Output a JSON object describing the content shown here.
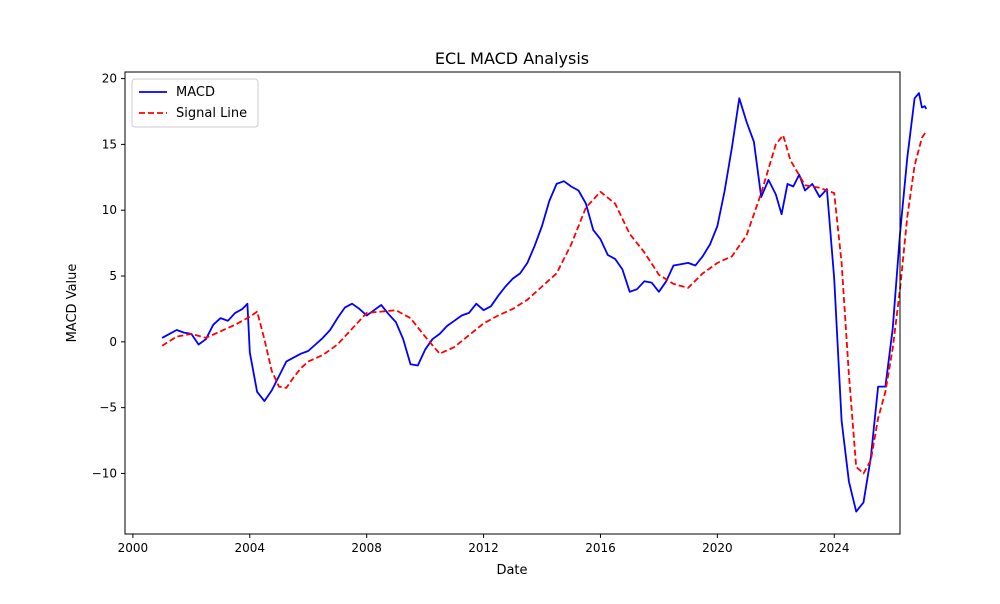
{
  "chart_data": {
    "type": "line",
    "title": "ECL MACD Analysis",
    "xlabel": "Date",
    "ylabel": "MACD Value",
    "xlim": [
      1999.73,
      2026.25
    ],
    "ylim": [
      -14.6,
      20.5
    ],
    "x_ticks": [
      2000,
      2004,
      2008,
      2012,
      2016,
      2020,
      2024
    ],
    "x_tick_labels": [
      "2000",
      "2004",
      "2008",
      "2012",
      "2016",
      "2020",
      "2024"
    ],
    "y_ticks": [
      -10,
      -5,
      0,
      5,
      10,
      15,
      20
    ],
    "y_tick_labels": [
      "−10",
      "−5",
      "0",
      "5",
      "10",
      "15",
      "20"
    ],
    "grid": false,
    "legend_position": "upper-left",
    "series": [
      {
        "name": "MACD",
        "color": "#0000ff",
        "style": "solid",
        "points": [
          [
            2001.0,
            0.3
          ],
          [
            2001.25,
            0.6
          ],
          [
            2001.5,
            0.9
          ],
          [
            2001.75,
            0.7
          ],
          [
            2002.0,
            0.6
          ],
          [
            2002.25,
            -0.2
          ],
          [
            2002.5,
            0.2
          ],
          [
            2002.75,
            1.3
          ],
          [
            2003.0,
            1.8
          ],
          [
            2003.25,
            1.6
          ],
          [
            2003.5,
            2.2
          ],
          [
            2003.75,
            2.5
          ],
          [
            2003.92,
            2.9
          ],
          [
            2004.0,
            -0.8
          ],
          [
            2004.25,
            -3.8
          ],
          [
            2004.5,
            -4.5
          ],
          [
            2004.75,
            -3.7
          ],
          [
            2005.0,
            -2.6
          ],
          [
            2005.25,
            -1.5
          ],
          [
            2005.5,
            -1.2
          ],
          [
            2005.75,
            -0.9
          ],
          [
            2006.0,
            -0.7
          ],
          [
            2006.25,
            -0.2
          ],
          [
            2006.5,
            0.3
          ],
          [
            2006.75,
            0.9
          ],
          [
            2007.0,
            1.8
          ],
          [
            2007.25,
            2.6
          ],
          [
            2007.5,
            2.9
          ],
          [
            2007.75,
            2.5
          ],
          [
            2008.0,
            2.0
          ],
          [
            2008.25,
            2.4
          ],
          [
            2008.5,
            2.8
          ],
          [
            2008.75,
            2.1
          ],
          [
            2009.0,
            1.5
          ],
          [
            2009.25,
            0.2
          ],
          [
            2009.5,
            -1.7
          ],
          [
            2009.75,
            -1.8
          ],
          [
            2010.0,
            -0.6
          ],
          [
            2010.25,
            0.2
          ],
          [
            2010.5,
            0.6
          ],
          [
            2010.75,
            1.2
          ],
          [
            2011.0,
            1.6
          ],
          [
            2011.25,
            2.0
          ],
          [
            2011.5,
            2.2
          ],
          [
            2011.75,
            2.9
          ],
          [
            2012.0,
            2.4
          ],
          [
            2012.25,
            2.7
          ],
          [
            2012.5,
            3.5
          ],
          [
            2012.75,
            4.2
          ],
          [
            2013.0,
            4.8
          ],
          [
            2013.25,
            5.2
          ],
          [
            2013.5,
            6.0
          ],
          [
            2013.75,
            7.3
          ],
          [
            2014.0,
            8.8
          ],
          [
            2014.25,
            10.7
          ],
          [
            2014.5,
            12.0
          ],
          [
            2014.75,
            12.2
          ],
          [
            2015.0,
            11.8
          ],
          [
            2015.25,
            11.5
          ],
          [
            2015.5,
            10.5
          ],
          [
            2015.75,
            8.5
          ],
          [
            2016.0,
            7.8
          ],
          [
            2016.25,
            6.6
          ],
          [
            2016.5,
            6.3
          ],
          [
            2016.75,
            5.5
          ],
          [
            2017.0,
            3.8
          ],
          [
            2017.25,
            4.0
          ],
          [
            2017.5,
            4.6
          ],
          [
            2017.75,
            4.5
          ],
          [
            2018.0,
            3.8
          ],
          [
            2018.25,
            4.6
          ],
          [
            2018.5,
            5.8
          ],
          [
            2018.75,
            5.9
          ],
          [
            2019.0,
            6.0
          ],
          [
            2019.25,
            5.8
          ],
          [
            2019.5,
            6.5
          ],
          [
            2019.75,
            7.4
          ],
          [
            2020.0,
            8.8
          ],
          [
            2020.25,
            11.5
          ],
          [
            2020.5,
            14.8
          ],
          [
            2020.75,
            18.5
          ],
          [
            2021.0,
            16.7
          ],
          [
            2021.25,
            15.2
          ],
          [
            2021.5,
            11.0
          ],
          [
            2021.75,
            12.3
          ],
          [
            2022.0,
            11.2
          ],
          [
            2022.2,
            9.7
          ],
          [
            2022.4,
            12.0
          ],
          [
            2022.6,
            11.8
          ],
          [
            2022.8,
            12.7
          ],
          [
            2023.0,
            11.5
          ],
          [
            2023.25,
            12.0
          ],
          [
            2023.5,
            11.0
          ],
          [
            2023.75,
            11.6
          ],
          [
            2024.0,
            4.8
          ],
          [
            2024.25,
            -6.0
          ],
          [
            2024.5,
            -10.6
          ],
          [
            2024.75,
            -12.9
          ],
          [
            2025.0,
            -12.2
          ],
          [
            2025.25,
            -8.8
          ],
          [
            2025.5,
            -3.4
          ],
          [
            2025.75,
            -3.4
          ],
          [
            2026.0,
            1.0
          ],
          [
            2026.25,
            8.2
          ],
          [
            2026.5,
            14.0
          ],
          [
            2026.75,
            18.5
          ],
          [
            2026.9,
            18.9
          ],
          [
            2027.0,
            17.8
          ],
          [
            2027.1,
            17.9
          ],
          [
            2027.15,
            17.7
          ]
        ]
      },
      {
        "name": "Signal Line",
        "color": "#ff0000",
        "style": "dashed",
        "points": [
          [
            2001.0,
            -0.3
          ],
          [
            2001.5,
            0.4
          ],
          [
            2002.0,
            0.6
          ],
          [
            2002.5,
            0.3
          ],
          [
            2003.0,
            0.8
          ],
          [
            2003.5,
            1.3
          ],
          [
            2004.0,
            1.9
          ],
          [
            2004.25,
            2.3
          ],
          [
            2004.5,
            0.2
          ],
          [
            2004.75,
            -2.2
          ],
          [
            2005.0,
            -3.4
          ],
          [
            2005.25,
            -3.5
          ],
          [
            2005.5,
            -2.7
          ],
          [
            2005.75,
            -2.0
          ],
          [
            2006.0,
            -1.5
          ],
          [
            2006.5,
            -1.0
          ],
          [
            2007.0,
            -0.2
          ],
          [
            2007.5,
            1.0
          ],
          [
            2008.0,
            2.2
          ],
          [
            2008.5,
            2.3
          ],
          [
            2009.0,
            2.4
          ],
          [
            2009.5,
            1.8
          ],
          [
            2010.0,
            0.4
          ],
          [
            2010.5,
            -0.9
          ],
          [
            2011.0,
            -0.4
          ],
          [
            2011.5,
            0.5
          ],
          [
            2012.0,
            1.4
          ],
          [
            2012.5,
            2.0
          ],
          [
            2013.0,
            2.5
          ],
          [
            2013.5,
            3.2
          ],
          [
            2014.0,
            4.2
          ],
          [
            2014.5,
            5.2
          ],
          [
            2015.0,
            7.4
          ],
          [
            2015.5,
            10.2
          ],
          [
            2016.0,
            11.4
          ],
          [
            2016.5,
            10.5
          ],
          [
            2017.0,
            8.2
          ],
          [
            2017.5,
            6.8
          ],
          [
            2018.0,
            5.1
          ],
          [
            2018.5,
            4.4
          ],
          [
            2019.0,
            4.1
          ],
          [
            2019.5,
            5.2
          ],
          [
            2020.0,
            6.0
          ],
          [
            2020.5,
            6.5
          ],
          [
            2021.0,
            8.1
          ],
          [
            2021.5,
            11.3
          ],
          [
            2022.0,
            15.0
          ],
          [
            2022.25,
            15.7
          ],
          [
            2022.5,
            13.8
          ],
          [
            2023.0,
            11.9
          ],
          [
            2023.5,
            11.7
          ],
          [
            2024.0,
            11.3
          ],
          [
            2024.25,
            6.0
          ],
          [
            2024.5,
            -2.5
          ],
          [
            2024.75,
            -9.5
          ],
          [
            2025.0,
            -10.0
          ],
          [
            2025.25,
            -9.0
          ],
          [
            2025.5,
            -5.8
          ],
          [
            2025.75,
            -3.8
          ],
          [
            2026.0,
            -0.5
          ],
          [
            2026.25,
            4.0
          ],
          [
            2026.5,
            9.5
          ],
          [
            2026.75,
            13.4
          ],
          [
            2027.0,
            15.5
          ],
          [
            2027.15,
            16.0
          ]
        ]
      }
    ]
  }
}
